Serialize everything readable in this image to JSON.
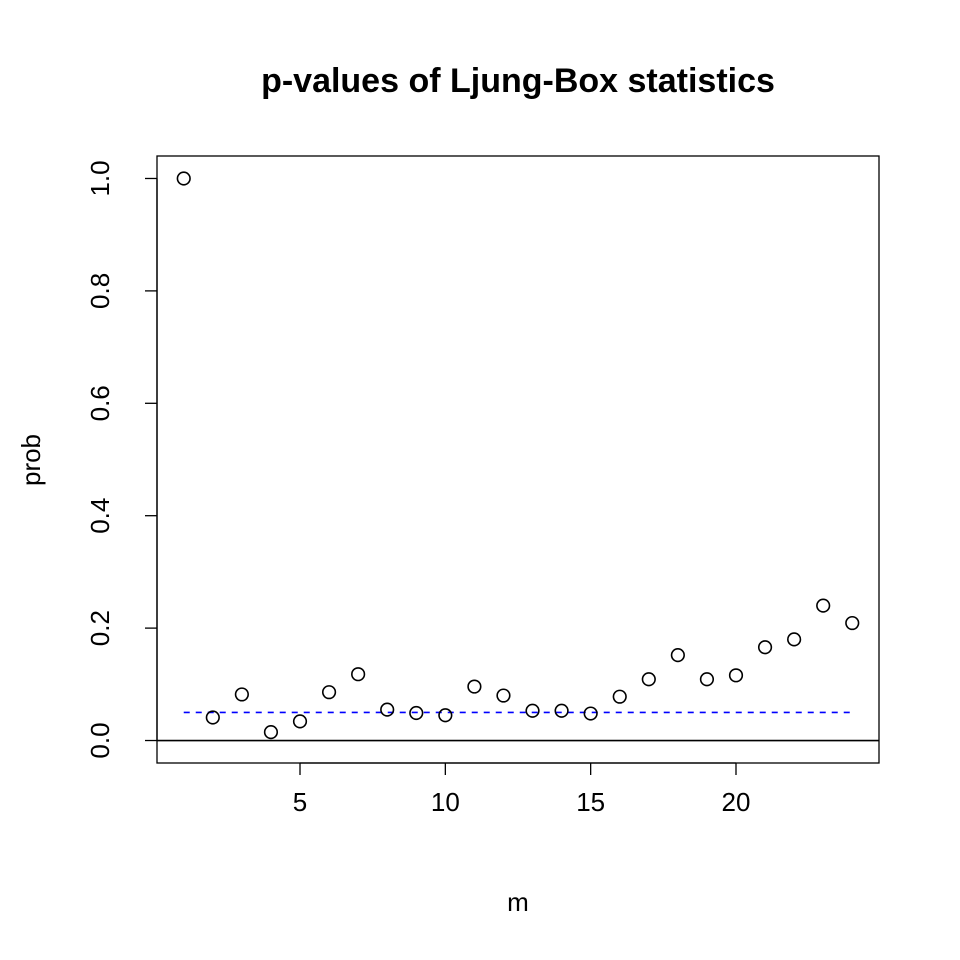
{
  "chart_data": {
    "type": "scatter",
    "title": "p-values of Ljung-Box statistics",
    "xlabel": "m",
    "ylabel": "prob",
    "xlim": [
      0.08,
      24.92
    ],
    "ylim": [
      -0.04,
      1.04
    ],
    "x_ticks": [
      5,
      10,
      15,
      20
    ],
    "y_ticks": [
      0.0,
      0.2,
      0.4,
      0.6,
      0.8,
      1.0
    ],
    "y_tick_labels": [
      "0.0",
      "0.2",
      "0.4",
      "0.6",
      "0.8",
      "1.0"
    ],
    "grid": false,
    "series": [
      {
        "marker": "open-circle",
        "color": "#000000",
        "x": [
          1,
          2,
          3,
          4,
          5,
          6,
          7,
          8,
          9,
          10,
          11,
          12,
          13,
          14,
          15,
          16,
          17,
          18,
          19,
          20,
          21,
          22,
          23,
          24
        ],
        "y": [
          1.0,
          0.041,
          0.082,
          0.015,
          0.034,
          0.086,
          0.118,
          0.055,
          0.049,
          0.045,
          0.096,
          0.08,
          0.053,
          0.053,
          0.048,
          0.078,
          0.109,
          0.152,
          0.109,
          0.116,
          0.166,
          0.18,
          0.24,
          0.209
        ]
      }
    ],
    "reference_lines": [
      {
        "value": 0.05,
        "x_range": [
          1,
          24
        ],
        "style": "dashed",
        "color": "#0000ff"
      },
      {
        "value": 0.0,
        "style": "solid",
        "color": "#000000",
        "full_width": true
      }
    ]
  }
}
